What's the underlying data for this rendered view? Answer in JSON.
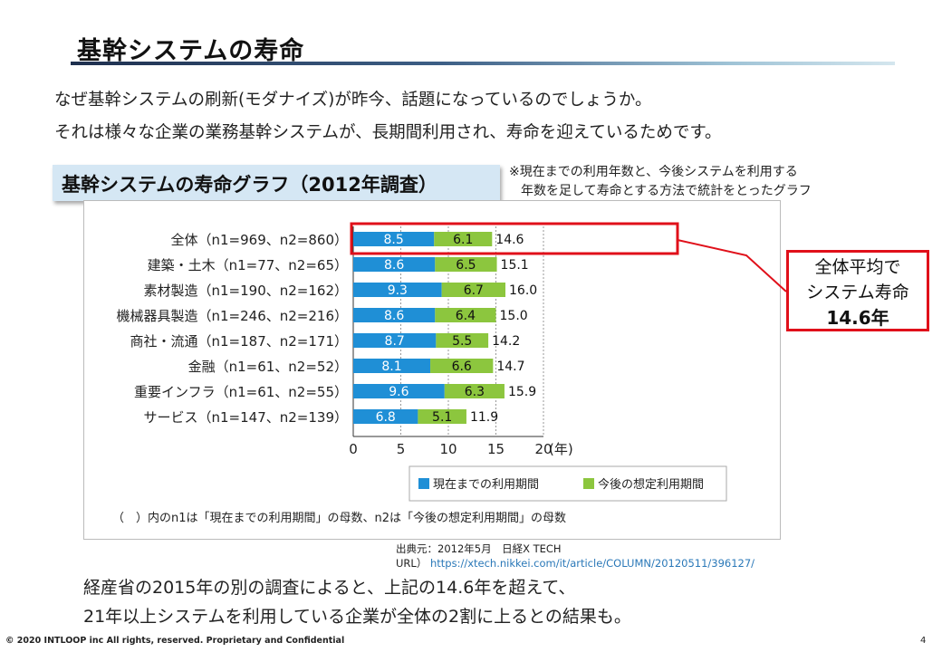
{
  "page": {
    "title": "基幹システムの寿命",
    "intro_line1": "なぜ基幹システムの刷新(モダナイズ)が昨今、話題になっているのでしょうか。",
    "intro_line2": "それは様々な企業の業務基幹システムが、長期間利用され、寿命を迎えているためです。",
    "badge": "基幹システムの寿命グラフ（2012年調査）",
    "note_line1": "※現在までの利用年数と、今後システムを利用する",
    "note_line2": "年数を足して寿命とする方法で統計をとったグラフ",
    "callout_line1": "全体平均で",
    "callout_line2": "システム寿命",
    "callout_line3": "14.6年",
    "source_line1": "出典元：2012年5月　日経X TECH",
    "source_url_prefix": "URL）",
    "source_url": "https://xtech.nikkei.com/it/article/COLUMN/20120511/396127/",
    "conclusion_line1": "経産省の2015年の別の調査によると、上記の14.6年を超えて、",
    "conclusion_line2": "21年以上システムを利用している企業が全体の2割に上るとの結果も。",
    "footer": "© 2020 INTLOOP inc All rights, reserved.  Proprietary and Confidential",
    "page_number": "4"
  },
  "colors": {
    "current": "#1f8fd6",
    "future": "#8cc63e",
    "highlight": "#e0101a",
    "grid": "#999999"
  },
  "chart_data": {
    "type": "bar",
    "orientation": "horizontal",
    "stacked": true,
    "categories": [
      "全体（n1=969、n2=860）",
      "建築・土木（n1=77、n2=65）",
      "素材製造（n1=190、n2=162）",
      "機械器具製造（n1=246、n2=216）",
      "商社・流通（n1=187、n2=171）",
      "金融（n1=61、n2=52）",
      "重要インフラ（n1=61、n2=55）",
      "サービス（n1=147、n2=139）"
    ],
    "series": [
      {
        "name": "現在までの利用期間",
        "values": [
          8.5,
          8.6,
          9.3,
          8.6,
          8.7,
          8.1,
          9.6,
          6.8
        ]
      },
      {
        "name": "今後の想定利用期間",
        "values": [
          6.1,
          6.5,
          6.7,
          6.4,
          5.5,
          6.6,
          6.3,
          5.1
        ]
      }
    ],
    "totals": [
      "14.6",
      "15.1",
      "16.0",
      "15.0",
      "14.2",
      "14.7",
      "15.9",
      "11.9"
    ],
    "x_ticks": [
      "0",
      "5",
      "10",
      "15",
      "20"
    ],
    "x_unit": "(年)",
    "xlim": [
      0,
      20
    ],
    "grid": "vertical dotted",
    "legend_position": "bottom-right",
    "highlight_category": "全体（n1=969、n2=860）",
    "footnote": "（　）内のn1は「現在までの利用期間」の母数、n2は「今後の想定利用期間」の母数"
  }
}
